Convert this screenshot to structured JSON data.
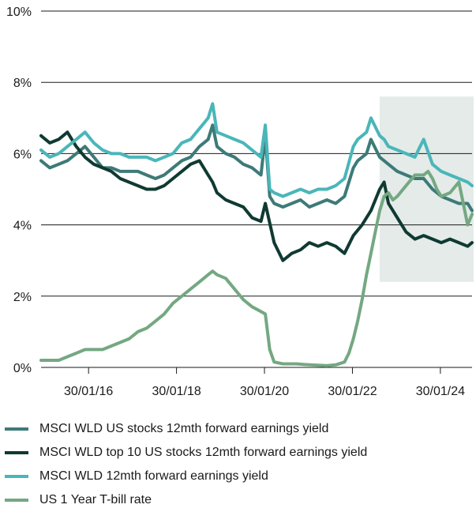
{
  "chart_data": {
    "type": "line",
    "title": "",
    "xlabel": "",
    "ylabel": "",
    "ylim": [
      0,
      10
    ],
    "y_ticks": [
      "0%",
      "2%",
      "4%",
      "6%",
      "8%",
      "10%"
    ],
    "x_ticks": [
      "30/01/16",
      "30/01/18",
      "30/01/20",
      "30/01/22",
      "30/01/24"
    ],
    "x_tick_years": [
      2016.08,
      2018.08,
      2020.08,
      2022.08,
      2024.08
    ],
    "x_range": [
      2015.0,
      2024.8
    ],
    "shaded_region": {
      "x_start": 2022.7,
      "x_end": 2024.8,
      "y_start": 2.4,
      "y_end": 7.6,
      "color": "#e4ebe8"
    },
    "series": [
      {
        "name": "MSCI WLD US stocks 12mth forward earnings yield",
        "color": "#3d7a78",
        "x": [
          2015.0,
          2015.2,
          2015.4,
          2015.6,
          2015.8,
          2016.0,
          2016.2,
          2016.4,
          2016.6,
          2016.8,
          2017.0,
          2017.2,
          2017.4,
          2017.6,
          2017.8,
          2018.0,
          2018.2,
          2018.4,
          2018.6,
          2018.8,
          2018.9,
          2019.0,
          2019.2,
          2019.4,
          2019.6,
          2019.8,
          2020.0,
          2020.1,
          2020.2,
          2020.3,
          2020.5,
          2020.7,
          2020.9,
          2021.1,
          2021.3,
          2021.5,
          2021.7,
          2021.9,
          2022.1,
          2022.2,
          2022.4,
          2022.5,
          2022.7,
          2022.8,
          2022.9,
          2023.1,
          2023.3,
          2023.5,
          2023.7,
          2023.9,
          2024.1,
          2024.3,
          2024.5,
          2024.7,
          2024.8
        ],
        "values": [
          5.8,
          5.6,
          5.7,
          5.8,
          6.0,
          6.2,
          5.9,
          5.6,
          5.6,
          5.5,
          5.5,
          5.5,
          5.4,
          5.3,
          5.4,
          5.6,
          5.8,
          5.9,
          6.2,
          6.4,
          6.8,
          6.2,
          6.0,
          5.9,
          5.7,
          5.6,
          5.4,
          6.5,
          4.8,
          4.6,
          4.5,
          4.6,
          4.7,
          4.5,
          4.6,
          4.7,
          4.6,
          4.8,
          5.6,
          5.8,
          6.0,
          6.4,
          5.9,
          5.8,
          5.7,
          5.5,
          5.4,
          5.3,
          5.3,
          5.0,
          4.8,
          4.7,
          4.6,
          4.6,
          4.4
        ]
      },
      {
        "name": "MSCI WLD top 10 US stocks 12mth forward earnings yield",
        "color": "#0f3a32",
        "x": [
          2015.0,
          2015.2,
          2015.4,
          2015.6,
          2015.8,
          2016.0,
          2016.2,
          2016.4,
          2016.6,
          2016.8,
          2017.0,
          2017.2,
          2017.4,
          2017.6,
          2017.8,
          2018.0,
          2018.2,
          2018.4,
          2018.6,
          2018.8,
          2018.9,
          2019.0,
          2019.2,
          2019.4,
          2019.6,
          2019.8,
          2020.0,
          2020.1,
          2020.3,
          2020.5,
          2020.7,
          2020.9,
          2021.1,
          2021.3,
          2021.5,
          2021.7,
          2021.9,
          2022.1,
          2022.3,
          2022.5,
          2022.7,
          2022.8,
          2022.9,
          2023.1,
          2023.3,
          2023.5,
          2023.7,
          2023.9,
          2024.1,
          2024.3,
          2024.5,
          2024.7,
          2024.8
        ],
        "values": [
          6.5,
          6.3,
          6.4,
          6.6,
          6.2,
          5.9,
          5.7,
          5.6,
          5.5,
          5.3,
          5.2,
          5.1,
          5.0,
          5.0,
          5.1,
          5.3,
          5.5,
          5.7,
          5.8,
          5.4,
          5.2,
          4.9,
          4.7,
          4.6,
          4.5,
          4.2,
          4.1,
          4.6,
          3.5,
          3.0,
          3.2,
          3.3,
          3.5,
          3.4,
          3.5,
          3.4,
          3.2,
          3.7,
          4.0,
          4.4,
          5.0,
          5.2,
          4.6,
          4.2,
          3.8,
          3.6,
          3.7,
          3.6,
          3.5,
          3.6,
          3.5,
          3.4,
          3.5
        ]
      },
      {
        "name": "MSCI WLD 12mth forward earnings yield",
        "color": "#4ab6b9",
        "x": [
          2015.0,
          2015.2,
          2015.4,
          2015.6,
          2015.8,
          2016.0,
          2016.2,
          2016.4,
          2016.6,
          2016.8,
          2017.0,
          2017.2,
          2017.4,
          2017.6,
          2017.8,
          2018.0,
          2018.2,
          2018.4,
          2018.6,
          2018.8,
          2018.9,
          2019.0,
          2019.2,
          2019.4,
          2019.6,
          2019.8,
          2020.0,
          2020.1,
          2020.2,
          2020.3,
          2020.5,
          2020.7,
          2020.9,
          2021.1,
          2021.3,
          2021.5,
          2021.7,
          2021.9,
          2022.1,
          2022.2,
          2022.4,
          2022.5,
          2022.7,
          2022.8,
          2022.9,
          2023.1,
          2023.3,
          2023.5,
          2023.7,
          2023.9,
          2024.1,
          2024.3,
          2024.5,
          2024.7,
          2024.8
        ],
        "values": [
          6.1,
          5.9,
          6.0,
          6.2,
          6.4,
          6.6,
          6.3,
          6.1,
          6.0,
          6.0,
          5.9,
          5.9,
          5.9,
          5.8,
          5.9,
          6.0,
          6.3,
          6.4,
          6.7,
          7.0,
          7.4,
          6.6,
          6.5,
          6.4,
          6.3,
          6.1,
          5.9,
          6.8,
          5.0,
          4.9,
          4.8,
          4.9,
          5.0,
          4.9,
          5.0,
          5.0,
          5.1,
          5.3,
          6.2,
          6.4,
          6.6,
          7.0,
          6.5,
          6.4,
          6.2,
          6.1,
          6.0,
          5.9,
          6.4,
          5.7,
          5.5,
          5.4,
          5.3,
          5.2,
          5.1
        ]
      },
      {
        "name": "US 1 Year T-bill rate",
        "color": "#74a882",
        "x": [
          2015.0,
          2015.2,
          2015.4,
          2015.6,
          2015.8,
          2016.0,
          2016.2,
          2016.4,
          2016.6,
          2016.8,
          2017.0,
          2017.2,
          2017.4,
          2017.6,
          2017.8,
          2018.0,
          2018.2,
          2018.4,
          2018.6,
          2018.8,
          2018.9,
          2019.0,
          2019.2,
          2019.4,
          2019.6,
          2019.8,
          2019.95,
          2020.1,
          2020.2,
          2020.3,
          2020.5,
          2020.8,
          2021.0,
          2021.3,
          2021.5,
          2021.7,
          2021.9,
          2022.0,
          2022.1,
          2022.2,
          2022.3,
          2022.4,
          2022.5,
          2022.6,
          2022.7,
          2022.8,
          2022.9,
          2023.0,
          2023.1,
          2023.3,
          2023.5,
          2023.7,
          2023.8,
          2023.9,
          2024.0,
          2024.1,
          2024.3,
          2024.5,
          2024.6,
          2024.7,
          2024.8
        ],
        "values": [
          0.2,
          0.2,
          0.2,
          0.3,
          0.4,
          0.5,
          0.5,
          0.5,
          0.6,
          0.7,
          0.8,
          1.0,
          1.1,
          1.3,
          1.5,
          1.8,
          2.0,
          2.2,
          2.4,
          2.6,
          2.7,
          2.6,
          2.5,
          2.2,
          1.9,
          1.7,
          1.6,
          1.5,
          0.5,
          0.15,
          0.1,
          0.1,
          0.08,
          0.06,
          0.05,
          0.07,
          0.15,
          0.4,
          0.8,
          1.3,
          1.9,
          2.6,
          3.2,
          3.8,
          4.4,
          4.8,
          4.9,
          4.7,
          4.8,
          5.1,
          5.4,
          5.4,
          5.5,
          5.3,
          5.0,
          4.8,
          4.9,
          5.2,
          4.6,
          4.0,
          4.3
        ]
      }
    ]
  }
}
